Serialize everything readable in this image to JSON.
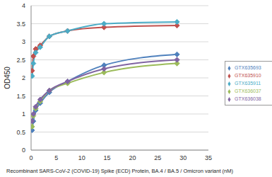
{
  "chart_data": {
    "type": "line",
    "x_label": "Recombinant SARS-CoV-2  (COVID-19) Spike (ECD) Protein, BA.4 / BA.5 / Omicron variant (nM)",
    "y_label": "OD450",
    "xlim": [
      0,
      35
    ],
    "xticks": [
      0,
      5,
      10,
      15,
      20,
      25,
      30,
      35
    ],
    "ylim": [
      0,
      4
    ],
    "yticks": [
      0,
      0.5,
      1,
      1.5,
      2,
      2.5,
      3,
      3.5,
      4
    ],
    "grid": true,
    "legend": "right",
    "marker": "diamond",
    "x": [
      0.2,
      0.45,
      0.9,
      1.8,
      3.6,
      7.2,
      14.4,
      28.8
    ],
    "series": [
      {
        "name": "GTX635693",
        "color": "#4f81bd",
        "values": [
          0.55,
          0.8,
          1.1,
          1.3,
          1.6,
          1.9,
          2.35,
          2.65
        ]
      },
      {
        "name": "GTX635910",
        "color": "#c0504d",
        "values": [
          2.2,
          2.6,
          2.8,
          2.9,
          3.15,
          3.3,
          3.4,
          3.45
        ]
      },
      {
        "name": "GTX636037",
        "color": "#9bbb59",
        "values": [
          0.65,
          0.95,
          1.15,
          1.35,
          1.65,
          1.85,
          2.15,
          2.4
        ]
      },
      {
        "name": "GTX636038",
        "color": "#8064a2",
        "values": [
          0.8,
          1.0,
          1.2,
          1.4,
          1.65,
          1.9,
          2.25,
          2.5
        ]
      },
      {
        "name": "GTX635911",
        "color": "#4bacc6",
        "values": [
          2.05,
          2.4,
          2.7,
          2.85,
          3.15,
          3.3,
          3.5,
          3.55
        ]
      }
    ]
  }
}
